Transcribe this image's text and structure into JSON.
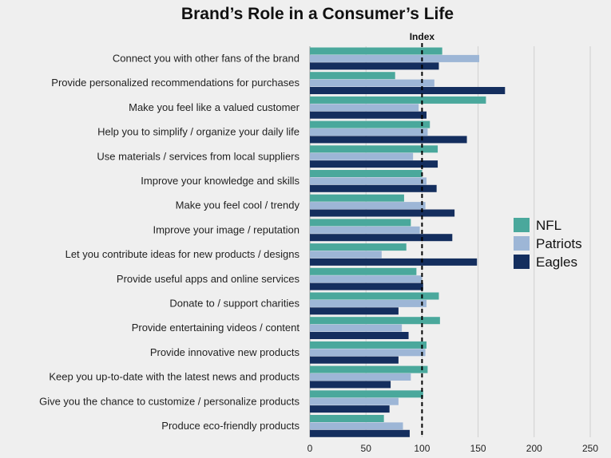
{
  "chart_data": {
    "type": "bar",
    "orientation": "horizontal",
    "title": "Brand’s Role in a Consumer’s Life",
    "xlabel": "",
    "ylabel": "",
    "xlim": [
      0,
      250
    ],
    "x_ticks": [
      "0",
      "50",
      "100",
      "150",
      "200",
      "250"
    ],
    "grid": true,
    "legend_position": "right",
    "reference_line": {
      "label": "Index",
      "value": 100,
      "style": "dashed"
    },
    "categories": [
      "Connect you with other fans of the brand",
      "Provide personalized recommendations for purchases",
      "Make you feel like a valued customer",
      "Help you to simplify / organize your daily life",
      "Use materials / services from local suppliers",
      "Improve your knowledge and skills",
      "Make you feel cool / trendy",
      "Improve your image / reputation",
      "Let you contribute ideas for new products / designs",
      "Provide useful apps and online services",
      "Donate to / support charities",
      "Provide entertaining videos / content",
      "Provide innovative new products",
      "Keep you up-to-date with the latest news and products",
      "Give you the chance to customize / personalize products",
      "Produce eco-friendly products"
    ],
    "series": [
      {
        "name": "NFL",
        "color": "#4aa89c",
        "values": [
          118,
          76,
          157,
          107,
          114,
          100,
          84,
          90,
          86,
          95,
          115,
          116,
          104,
          105,
          101,
          66
        ]
      },
      {
        "name": "Patriots",
        "color": "#9db6d6",
        "values": [
          151,
          111,
          97,
          105,
          92,
          104,
          103,
          98,
          64,
          100,
          104,
          82,
          103,
          90,
          79,
          83
        ]
      },
      {
        "name": "Eagles",
        "color": "#142e5e",
        "values": [
          115,
          174,
          104,
          140,
          114,
          113,
          129,
          127,
          149,
          101,
          79,
          88,
          79,
          72,
          71,
          89
        ]
      }
    ]
  }
}
